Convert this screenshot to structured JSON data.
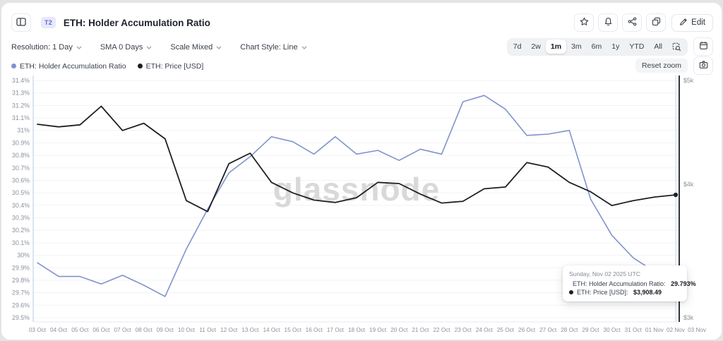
{
  "header": {
    "badge": "T2",
    "title": "ETH: Holder Accumulation Ratio",
    "edit_label": "Edit"
  },
  "toolbar": {
    "controls": [
      {
        "label": "Resolution: 1 Day"
      },
      {
        "label": "SMA 0 Days"
      },
      {
        "label": "Scale Mixed"
      },
      {
        "label": "Chart Style: Line"
      }
    ],
    "ranges": [
      "7d",
      "2w",
      "1m",
      "3m",
      "6m",
      "1y",
      "YTD",
      "All"
    ],
    "active_range": "1m"
  },
  "legend": [
    {
      "label": "ETH: Holder Accumulation Ratio",
      "color": "#8093cc"
    },
    {
      "label": "ETH: Price [USD]",
      "color": "#1c1f24"
    }
  ],
  "chart_controls": {
    "reset_zoom_label": "Reset zoom"
  },
  "watermark": "glassnode",
  "tooltip": {
    "date": "Sunday, Nov 02 2025 UTC",
    "rows": [
      {
        "label": "ETH: Holder Accumulation Ratio:",
        "value": "29.793%",
        "color": "#8093cc"
      },
      {
        "label": "ETH: Price [USD]:",
        "value": "$3,908.49",
        "color": "#1c1f24"
      }
    ]
  },
  "chart_data": {
    "type": "line",
    "x": [
      "03 Oct",
      "04 Oct",
      "05 Oct",
      "06 Oct",
      "07 Oct",
      "08 Oct",
      "09 Oct",
      "10 Oct",
      "11 Oct",
      "12 Oct",
      "13 Oct",
      "14 Oct",
      "15 Oct",
      "16 Oct",
      "17 Oct",
      "18 Oct",
      "19 Oct",
      "20 Oct",
      "21 Oct",
      "22 Oct",
      "23 Oct",
      "24 Oct",
      "25 Oct",
      "26 Oct",
      "27 Oct",
      "28 Oct",
      "29 Oct",
      "30 Oct",
      "31 Oct",
      "01 Nov",
      "02 Nov",
      "03 Nov"
    ],
    "series": [
      {
        "name": "ETH: Holder Accumulation Ratio",
        "axis": "left",
        "unit": "%",
        "color": "#8093cc",
        "values": [
          29.94,
          29.83,
          29.83,
          29.77,
          29.84,
          29.76,
          29.67,
          30.05,
          30.37,
          30.66,
          30.79,
          30.95,
          30.91,
          30.81,
          30.95,
          30.81,
          30.84,
          30.76,
          30.85,
          30.81,
          31.23,
          31.28,
          31.17,
          30.96,
          30.97,
          31.0,
          30.45,
          30.16,
          29.98,
          29.87,
          29.793
        ]
      },
      {
        "name": "ETH: Price [USD]",
        "axis": "right",
        "unit": "USD",
        "color": "#1c1f24",
        "values": [
          4550,
          4525,
          4545,
          4730,
          4490,
          4560,
          4410,
          3860,
          3770,
          4180,
          4275,
          4015,
          3925,
          3865,
          3845,
          3885,
          4015,
          4005,
          3915,
          3840,
          3855,
          3960,
          3975,
          4190,
          4150,
          4015,
          3935,
          3820,
          3860,
          3890,
          3908.49
        ]
      }
    ],
    "left_axis": {
      "min": 29.5,
      "max": 31.4,
      "tick_step": 0.1,
      "format": "percent"
    },
    "right_axis": {
      "scale": "log",
      "min": 3000,
      "max": 5000,
      "ticks": [
        5000,
        4000,
        3000
      ],
      "labels": [
        "$5k",
        "$4k",
        "$3k"
      ]
    },
    "grid": true,
    "legend_position": "top-left",
    "crosshair_index": 30
  }
}
